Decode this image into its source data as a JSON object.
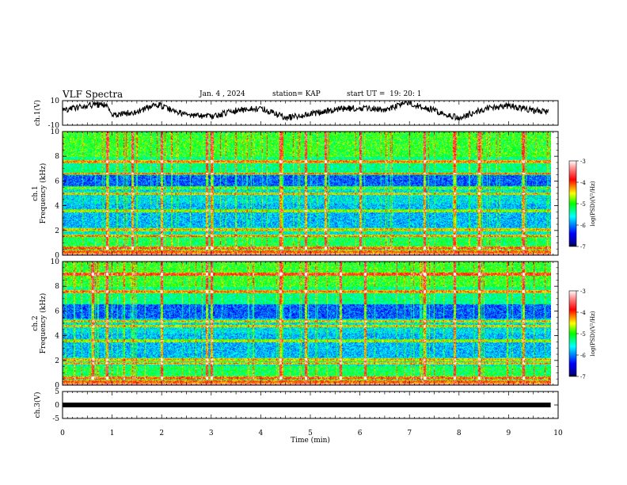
{
  "header": {
    "title": "VLF Spectra",
    "date": "Jan. 4 , 2024",
    "station": "station= KAP",
    "start": "start UT =  19: 20: 1"
  },
  "chart_data": [
    {
      "type": "line",
      "panel": "ch1-waveform",
      "ylabel": "ch.1(V)",
      "ylim": [
        -10,
        10
      ],
      "yticks": [
        "10",
        "-10"
      ],
      "xlim": [
        0,
        10
      ],
      "x": [
        0,
        0.5,
        0.9,
        1.0,
        1.5,
        1.9,
        2.5,
        3.0,
        3.5,
        4.0,
        4.5,
        5.0,
        5.5,
        6.0,
        6.5,
        7.0,
        7.5,
        8.0,
        8.5,
        9.0,
        9.5,
        9.8
      ],
      "values": [
        2,
        6,
        7,
        -2,
        1,
        7,
        -2,
        -3,
        2,
        4,
        -4,
        -1,
        3,
        4,
        3,
        8,
        2,
        -4,
        3,
        6,
        2,
        1
      ],
      "color": "#000000"
    },
    {
      "type": "heatmap",
      "panel": "ch1-spectrogram",
      "ylabel": "ch.1\nFrequency (kHz)",
      "ylim": [
        0,
        10
      ],
      "yticks": [
        "0",
        "2",
        "4",
        "6",
        "8",
        "10"
      ],
      "xlim": [
        0,
        9.85
      ],
      "bands_khz": [
        0.3,
        0.6,
        1.6,
        2.1,
        3.6,
        5.0,
        5.5,
        6.6,
        7.6
      ],
      "spike_times_min": [
        0.9,
        1.4,
        2.0,
        2.9,
        3.0,
        4.4,
        4.9,
        5.3,
        6.0,
        7.3,
        7.9,
        8.4,
        9.3
      ],
      "colorbar": {
        "label": "log(PSD)(V²/Hz)",
        "ticks": [
          "-3",
          "-4",
          "-5",
          "-6",
          "-7"
        ],
        "range": [
          -7,
          -3
        ]
      }
    },
    {
      "type": "heatmap",
      "panel": "ch2-spectrogram",
      "ylabel": "ch.2\nFrequency (kHz)",
      "ylim": [
        0,
        10
      ],
      "yticks": [
        "0",
        "2",
        "4",
        "6",
        "8",
        "10"
      ],
      "xlim": [
        0,
        9.85
      ],
      "bands_khz": [
        0.3,
        0.6,
        1.8,
        2.1,
        3.6,
        4.8,
        5.2,
        7.6,
        9.0
      ],
      "spike_times_min": [
        0.6,
        0.9,
        2.0,
        2.9,
        3.0,
        4.4,
        4.9,
        5.6,
        6.1,
        7.3,
        7.9,
        8.4,
        9.3
      ],
      "colorbar": {
        "label": "log(PSD)(V²/Hz)",
        "ticks": [
          "-3",
          "-4",
          "-5",
          "-6",
          "-7"
        ],
        "range": [
          -7,
          -3
        ]
      }
    },
    {
      "type": "line",
      "panel": "ch3-waveform",
      "ylabel": "ch.3(V)",
      "ylim": [
        -5,
        5
      ],
      "yticks": [
        "5",
        "0",
        "-5"
      ],
      "xlim": [
        0,
        10
      ],
      "x": [
        0,
        9.85
      ],
      "values": [
        0,
        0
      ],
      "color": "#000000"
    }
  ],
  "xaxis": {
    "label": "Time (min)",
    "ticks": [
      "0",
      "1",
      "2",
      "3",
      "4",
      "5",
      "6",
      "7",
      "8",
      "9",
      "10"
    ],
    "range": [
      0,
      10
    ]
  }
}
